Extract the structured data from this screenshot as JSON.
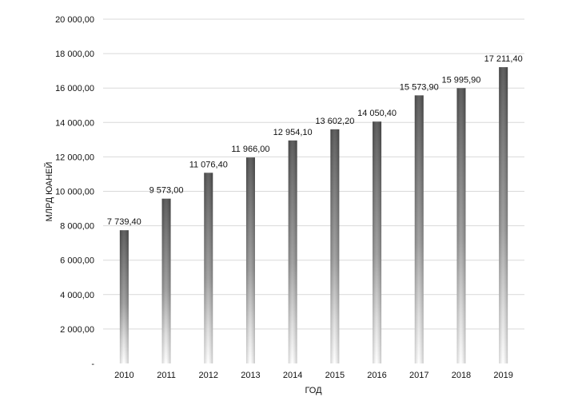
{
  "chart_data": {
    "type": "bar",
    "title": "",
    "xlabel": "ГОД",
    "ylabel": "МЛРД ЮАНЕЙ",
    "categories": [
      "2010",
      "2011",
      "2012",
      "2013",
      "2014",
      "2015",
      "2016",
      "2017",
      "2018",
      "2019"
    ],
    "values": [
      7739.4,
      9573.0,
      11076.4,
      11966.0,
      12954.1,
      13602.2,
      14050.4,
      15573.9,
      15995.9,
      17211.4
    ],
    "data_labels": [
      "7 739,40",
      "9 573,00",
      "11 076,40",
      "11 966,00",
      "12 954,10",
      "13 602,20",
      "14 050,40",
      "15 573,90",
      "15 995,90",
      "17 211,40"
    ],
    "ylim": [
      0,
      20000
    ],
    "yticks": [
      0,
      2000,
      4000,
      6000,
      8000,
      10000,
      12000,
      14000,
      16000,
      18000,
      20000
    ],
    "ytick_labels": [
      "-",
      "2 000,00",
      "4 000,00",
      "6 000,00",
      "8 000,00",
      "10 000,00",
      "12 000,00",
      "14 000,00",
      "16 000,00",
      "18 000,00",
      "20 000,00"
    ],
    "grid": true,
    "legend": "none",
    "colors": {
      "bar": "#5a5a5a",
      "bar_fade": "#ffffff",
      "grid": "#d9d9d9",
      "text": "#111111"
    }
  }
}
